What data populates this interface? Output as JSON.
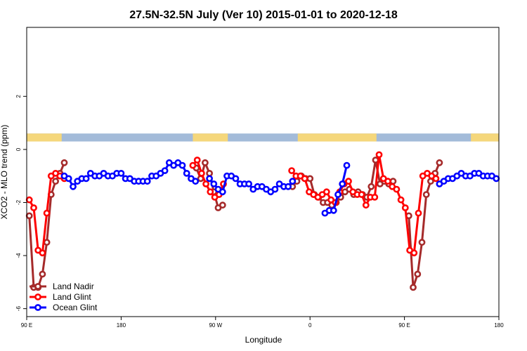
{
  "chart_data": {
    "type": "line",
    "title": "27.5N-32.5N July (Ver 10)   2015-01-01 to 2020-12-18",
    "xlabel": "Longitude",
    "ylabel": "XCO2 - MLO trend (ppm)",
    "xlim": [
      -90,
      180
    ],
    "ylim": [
      -6.3,
      4.6
    ],
    "x_ticks": [
      {
        "value": -90,
        "label": "90 E"
      },
      {
        "value": -36,
        "label": "180"
      },
      {
        "value": 18,
        "label": "90 W"
      },
      {
        "value": 72,
        "label": "0"
      },
      {
        "value": 126,
        "label": "90 E"
      },
      {
        "value": 180,
        "label": "180"
      }
    ],
    "y_ticks": [
      {
        "value": -6,
        "label": "-6"
      },
      {
        "value": -4,
        "label": "-4"
      },
      {
        "value": -2,
        "label": "-2"
      },
      {
        "value": 0,
        "label": "0"
      },
      {
        "value": 2,
        "label": "2"
      }
    ],
    "grid": false,
    "legend_position": "bottom-left",
    "land_ocean_strip": {
      "y_range": [
        0.3,
        0.6
      ],
      "land_color": "#f5d77b",
      "ocean_color": "#a3bbd9",
      "land_segments": [
        [
          -90,
          -70
        ],
        [
          5,
          25
        ],
        [
          65,
          110
        ],
        [
          164,
          180
        ]
      ]
    },
    "series": [
      {
        "name": "Land Nadir",
        "color": "#a52a2a",
        "x": [
          -88.5,
          -86,
          -83.5,
          -81,
          -78.5,
          -76,
          -73.5,
          -71,
          -68.5,
          7,
          9.5,
          12,
          14.5,
          17,
          19.5,
          22,
          62,
          64.5,
          67,
          69.5,
          72,
          74.5,
          77,
          79.5,
          82,
          84.5,
          87,
          89.5,
          92,
          94.5,
          97,
          99.5,
          102,
          104.5,
          107,
          109.5,
          112,
          114.5,
          117,
          119.5,
          128.5,
          131,
          133.5,
          136,
          138.5,
          141,
          143.5,
          146
        ],
        "y": [
          -2.5,
          -5.2,
          -5.2,
          -4.7,
          -3.5,
          -1.7,
          -1.2,
          -0.9,
          -0.5,
          -0.7,
          -1.1,
          -0.5,
          -0.9,
          -1.6,
          -2.2,
          -2.1,
          -1.4,
          -1.2,
          -1.0,
          -1.1,
          -1.1,
          -1.7,
          -1.8,
          -2.0,
          -2.0,
          -2.1,
          -2.0,
          -1.8,
          -1.6,
          -1.5,
          -1.7,
          -1.6,
          -1.7,
          -1.8,
          -1.4,
          -0.4,
          -1.3,
          -1.2,
          -1.3,
          -1.2,
          -2.5,
          -5.2,
          -4.7,
          -3.5,
          -1.7,
          -1.2,
          -0.9,
          -0.5
        ]
      },
      {
        "name": "Land Glint",
        "color": "#ff0000",
        "x": [
          -88.5,
          -86,
          -83.5,
          -81,
          -78.5,
          -76,
          -73.5,
          -71,
          -68.5,
          5,
          7.5,
          10,
          12.5,
          15,
          17.5,
          20,
          22.5,
          61.5,
          64,
          66.5,
          69,
          71.5,
          74,
          76.5,
          79,
          81.5,
          84,
          86.5,
          89,
          91.5,
          94,
          96.5,
          99,
          101.5,
          104,
          106.5,
          109,
          111.5,
          114,
          116.5,
          119,
          121.5,
          124,
          126.5,
          129,
          131.5,
          134,
          136.5,
          139,
          141.5,
          144
        ],
        "y": [
          -1.9,
          -2.2,
          -3.8,
          -3.9,
          -2.4,
          -1.0,
          -0.9,
          -1.0,
          -1.1,
          -0.6,
          -0.4,
          -0.9,
          -1.3,
          -1.6,
          -1.8,
          -1.7,
          -1.3,
          -0.8,
          -1.0,
          -1.0,
          -1.1,
          -1.6,
          -1.7,
          -1.8,
          -1.7,
          -1.6,
          -1.9,
          -2.0,
          -1.6,
          -1.3,
          -1.2,
          -1.6,
          -1.7,
          -1.7,
          -2.1,
          -1.8,
          -1.8,
          -0.2,
          -1.1,
          -1.2,
          -1.4,
          -1.5,
          -1.9,
          -2.2,
          -3.8,
          -3.9,
          -2.4,
          -1.0,
          -0.9,
          -1.0,
          -1.1
        ]
      },
      {
        "name": "Ocean Glint",
        "color": "#0000ff",
        "x": [
          -68.5,
          -66,
          -63.5,
          -61,
          -58.5,
          -56,
          -53.5,
          -51,
          -48.5,
          -46,
          -43.5,
          -41,
          -38.5,
          -36,
          -33.5,
          -31,
          -28.5,
          -26,
          -23.5,
          -21,
          -18.5,
          -16,
          -13.5,
          -11,
          -8.5,
          -6,
          -3.5,
          -1,
          1.5,
          4,
          6.5,
          14.5,
          17,
          19.5,
          22,
          24.5,
          27,
          29.5,
          32,
          34.5,
          37,
          39.5,
          42,
          44.5,
          47,
          49.5,
          52,
          54.5,
          57,
          59.5,
          62,
          80.5,
          83,
          85.5,
          88,
          90.5,
          93,
          146,
          148.5,
          151,
          153.5,
          156,
          158.5,
          161,
          163.5,
          166,
          168.5,
          171,
          173.5,
          176,
          178.5
        ],
        "y": [
          -1.0,
          -1.1,
          -1.4,
          -1.2,
          -1.1,
          -1.1,
          -0.9,
          -1.0,
          -1.0,
          -0.9,
          -1.0,
          -1.0,
          -0.9,
          -0.9,
          -1.1,
          -1.1,
          -1.2,
          -1.2,
          -1.2,
          -1.2,
          -1.0,
          -1.0,
          -0.9,
          -0.8,
          -0.5,
          -0.6,
          -0.5,
          -0.6,
          -0.9,
          -1.1,
          -1.2,
          -1.1,
          -1.3,
          -1.5,
          -1.6,
          -1.0,
          -1.0,
          -1.1,
          -1.3,
          -1.3,
          -1.3,
          -1.5,
          -1.4,
          -1.4,
          -1.5,
          -1.6,
          -1.5,
          -1.3,
          -1.4,
          -1.4,
          -1.2,
          -2.4,
          -2.3,
          -2.3,
          -1.7,
          -1.3,
          -0.6,
          -1.3,
          -1.2,
          -1.1,
          -1.1,
          -1.0,
          -0.9,
          -1.0,
          -1.0,
          -0.9,
          -0.9,
          -1.0,
          -1.0,
          -1.0,
          -1.1
        ]
      }
    ]
  }
}
